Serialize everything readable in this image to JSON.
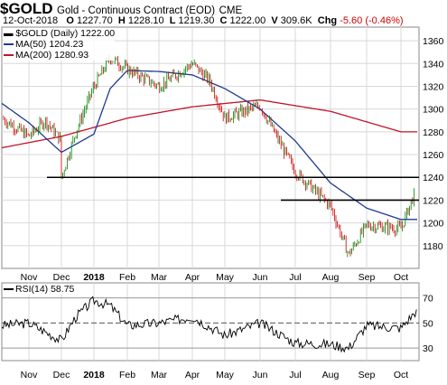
{
  "header": {
    "symbol": "$GOLD",
    "name": "Gold - Continuous Contract (EOD)",
    "exchange": "CME",
    "date": "12-Oct-2018",
    "open_label": "O",
    "open": "1227.70",
    "high_label": "H",
    "high": "1228.10",
    "low_label": "L",
    "low": "1219.30",
    "close_label": "C",
    "close": "1222.00",
    "volume_label": "V",
    "volume": "309.6K",
    "change_label": "Chg",
    "change": "-5.60 (-0.46%)"
  },
  "legend": {
    "price": "$GOLD (Daily) 1222.00",
    "ma50": "MA(50) 1204.23",
    "ma200": "MA(200) 1280.93"
  },
  "rsi_legend": "RSI(14) 58.75",
  "colors": {
    "up": "#008000",
    "down": "#cc0000",
    "ma50": "#1f3a93",
    "ma200": "#c0142a",
    "grid": "#d8d8d8",
    "rsi": "#000000"
  },
  "chart_data": [
    {
      "type": "candlestick",
      "x_ticks": [
        "Nov",
        "Dec",
        "2018",
        "Feb",
        "Mar",
        "Apr",
        "May",
        "Jun",
        "Jul",
        "Aug",
        "Sep",
        "Oct"
      ],
      "y_ticks": [
        1180,
        1200,
        1220,
        1240,
        1260,
        1280,
        1300,
        1320,
        1340,
        1360
      ],
      "ylim": [
        1160,
        1372
      ],
      "horizontal_lines": [
        {
          "value": 1240,
          "from_month": "Dec",
          "to_month": "end"
        },
        {
          "value": 1220,
          "from_month": "Jul",
          "to_month": "end"
        }
      ],
      "series": [
        {
          "name": "$GOLD (Daily)",
          "last": 1222.0,
          "anchors": [
            {
              "x": "Oct 2017",
              "y": 1292
            },
            {
              "x": "Nov",
              "y": 1276
            },
            {
              "x": "mid Nov",
              "y": 1290
            },
            {
              "x": "Dec",
              "y": 1272
            },
            {
              "x": "Dec",
              "y": 1240
            },
            {
              "x": "late Dec",
              "y": 1280
            },
            {
              "x": "2018",
              "y": 1320
            },
            {
              "x": "Jan",
              "y": 1345
            },
            {
              "x": "Feb",
              "y": 1335
            },
            {
              "x": "Mar",
              "y": 1320
            },
            {
              "x": "Apr",
              "y": 1340
            },
            {
              "x": "late Apr",
              "y": 1325
            },
            {
              "x": "May",
              "y": 1292
            },
            {
              "x": "Jun",
              "y": 1303
            },
            {
              "x": "Jul",
              "y": 1245
            },
            {
              "x": "Aug",
              "y": 1215
            },
            {
              "x": "mid Aug",
              "y": 1172
            },
            {
              "x": "Sep",
              "y": 1198
            },
            {
              "x": "Oct",
              "y": 1195
            },
            {
              "x": "mid Oct",
              "y": 1228
            }
          ]
        },
        {
          "name": "MA(50)",
          "last": 1204.23,
          "anchors": [
            {
              "x": "Oct 2017",
              "y": 1305
            },
            {
              "x": "Nov",
              "y": 1288
            },
            {
              "x": "Dec",
              "y": 1262
            },
            {
              "x": "2018",
              "y": 1278
            },
            {
              "x": "Jan",
              "y": 1318
            },
            {
              "x": "Feb",
              "y": 1334
            },
            {
              "x": "Mar",
              "y": 1333
            },
            {
              "x": "Apr",
              "y": 1330
            },
            {
              "x": "May",
              "y": 1318
            },
            {
              "x": "Jun",
              "y": 1300
            },
            {
              "x": "Jul",
              "y": 1272
            },
            {
              "x": "Aug",
              "y": 1235
            },
            {
              "x": "Sep",
              "y": 1213
            },
            {
              "x": "Oct",
              "y": 1203
            }
          ]
        },
        {
          "name": "MA(200)",
          "last": 1280.93,
          "anchors": [
            {
              "x": "Oct 2017",
              "y": 1266
            },
            {
              "x": "Dec",
              "y": 1276
            },
            {
              "x": "Feb",
              "y": 1292
            },
            {
              "x": "Apr",
              "y": 1302
            },
            {
              "x": "Jun",
              "y": 1308
            },
            {
              "x": "Aug",
              "y": 1298
            },
            {
              "x": "Oct",
              "y": 1280
            }
          ]
        }
      ]
    },
    {
      "type": "line",
      "name": "RSI(14)",
      "last": 58.75,
      "y_ticks": [
        30,
        50,
        70
      ],
      "ylim": [
        20,
        82
      ],
      "reference_lines": [
        30,
        50,
        70
      ],
      "x_ticks": [
        "Nov",
        "Dec",
        "2018",
        "Feb",
        "Mar",
        "Apr",
        "May",
        "Jun",
        "Jul",
        "Aug",
        "Sep",
        "Oct"
      ],
      "anchors": [
        {
          "x": "Oct 2017",
          "y": 48
        },
        {
          "x": "Nov",
          "y": 50
        },
        {
          "x": "Dec",
          "y": 36
        },
        {
          "x": "late Dec",
          "y": 55
        },
        {
          "x": "2018",
          "y": 68
        },
        {
          "x": "Jan",
          "y": 64
        },
        {
          "x": "Feb",
          "y": 48
        },
        {
          "x": "Mar",
          "y": 50
        },
        {
          "x": "Apr",
          "y": 55
        },
        {
          "x": "May",
          "y": 40
        },
        {
          "x": "Jun",
          "y": 50
        },
        {
          "x": "Jul",
          "y": 34
        },
        {
          "x": "Aug",
          "y": 33
        },
        {
          "x": "mid Aug",
          "y": 30
        },
        {
          "x": "Sep",
          "y": 48
        },
        {
          "x": "Oct",
          "y": 46
        },
        {
          "x": "mid Oct",
          "y": 59
        }
      ]
    }
  ]
}
